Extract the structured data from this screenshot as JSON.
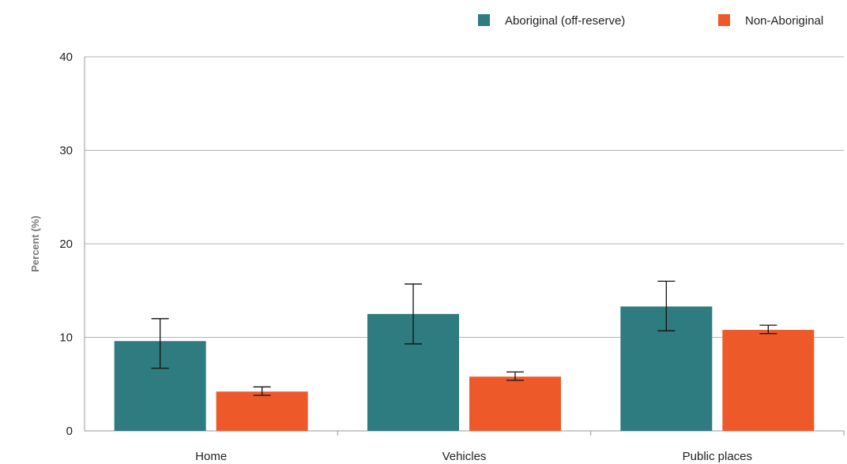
{
  "chart_data": {
    "type": "bar",
    "categories": [
      "Home",
      "Vehicles",
      "Public places"
    ],
    "series": [
      {
        "name": "Aboriginal (off-reserve)",
        "color": "#2e7b80",
        "values": [
          9.6,
          12.5,
          13.3
        ],
        "error_low": [
          6.7,
          9.3,
          10.7
        ],
        "error_high": [
          12.0,
          15.7,
          16.0
        ]
      },
      {
        "name": "Non-Aboriginal",
        "color": "#ee592a",
        "values": [
          4.2,
          5.8,
          10.8
        ],
        "error_low": [
          3.8,
          5.4,
          10.4
        ],
        "error_high": [
          4.7,
          6.3,
          11.3
        ]
      }
    ],
    "title": "",
    "xlabel": "",
    "ylabel": "Percent (%)",
    "ylim": [
      0,
      40
    ],
    "yticks": [
      0,
      10,
      20,
      30,
      40
    ],
    "grid": true,
    "legend_position": "top-right"
  }
}
